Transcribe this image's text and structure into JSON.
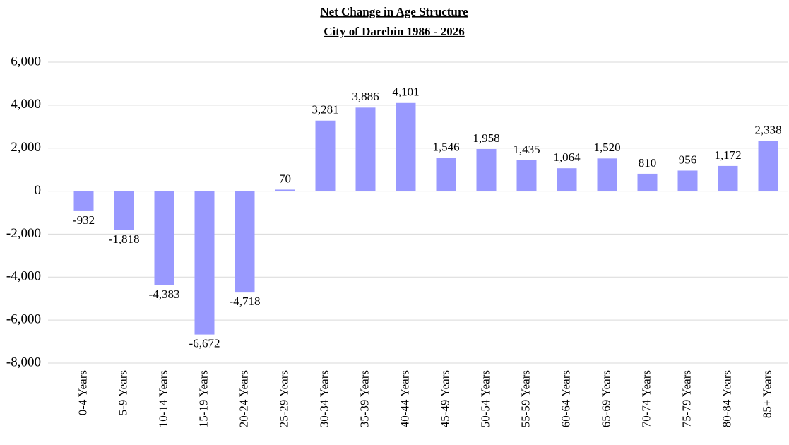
{
  "chart_data": {
    "type": "bar",
    "title": "Net Change in Age Structure",
    "subtitle": "City of Darebin 1986 - 2026",
    "categories": [
      "0-4 Years",
      "5-9 Years",
      "10-14 Years",
      "15-19 Years",
      "20-24 Years",
      "25-29 Years",
      "30-34 Years",
      "35-39 Years",
      "40-44 Years",
      "45-49 Years",
      "50-54 Years",
      "55-59 Years",
      "60-64 Years",
      "65-69 Years",
      "70-74 Years",
      "75-79 Years",
      "80-84 Years",
      "85+ Years"
    ],
    "values": [
      -932,
      -1818,
      -4383,
      -6672,
      -4718,
      70,
      3281,
      3886,
      4101,
      1546,
      1958,
      1435,
      1064,
      1520,
      810,
      956,
      1172,
      2338
    ],
    "value_labels": [
      "-932",
      "-1,818",
      "-4,383",
      "-6,672",
      "-4,718",
      "70",
      "3,281",
      "3,886",
      "4,101",
      "1,546",
      "1,958",
      "1,435",
      "1,064",
      "1,520",
      "810",
      "956",
      "1,172",
      "2,338"
    ],
    "color": "#9999ff",
    "ylim": [
      -8000,
      6000
    ],
    "yticks": [
      {
        "value": -8000,
        "label": "-8,000"
      },
      {
        "value": -6000,
        "label": "-6,000"
      },
      {
        "value": -4000,
        "label": "-4,000"
      },
      {
        "value": -2000,
        "label": "-2,000"
      },
      0,
      {
        "value": 2000,
        "label": "2,000"
      },
      {
        "value": 4000,
        "label": "4,000"
      },
      {
        "value": 6000,
        "label": "6,000"
      }
    ],
    "grid": true
  }
}
